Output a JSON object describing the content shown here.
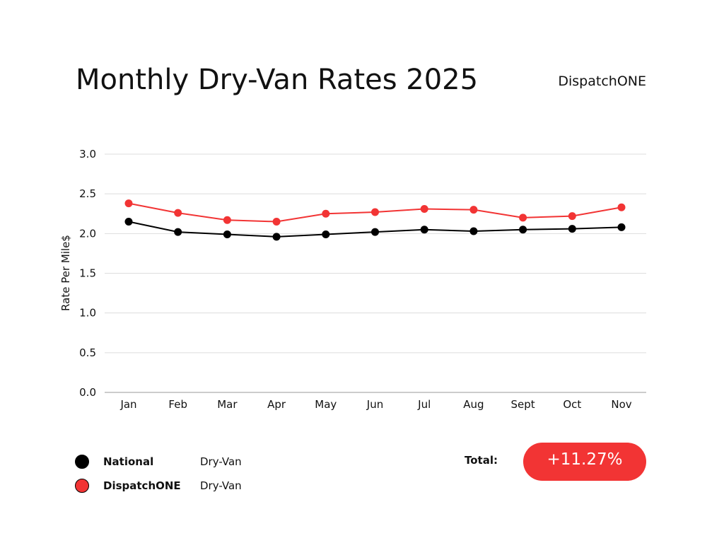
{
  "header": {
    "title": "Monthly Dry-Van Rates 2025",
    "brand": "DispatchONE"
  },
  "chart_data": {
    "type": "line",
    "title": "Monthly Dry-Van Rates 2025",
    "xlabel": "",
    "ylabel": "Rate Per Mile$",
    "ylim": [
      0,
      3
    ],
    "yticks": [
      "0.0",
      "0.5",
      "1.0",
      "1.5",
      "2.0",
      "2.5",
      "3.0"
    ],
    "categories": [
      "Jan",
      "Feb",
      "Mar",
      "Apr",
      "May",
      "Jun",
      "Jul",
      "Aug",
      "Sept",
      "Oct",
      "Nov"
    ],
    "grid": true,
    "series": [
      {
        "name": "National",
        "color": "#000000",
        "values": [
          2.15,
          2.02,
          1.99,
          1.96,
          1.99,
          2.02,
          2.05,
          2.03,
          2.05,
          2.06,
          2.08
        ]
      },
      {
        "name": "DispatchONE",
        "color": "#f23434",
        "values": [
          2.38,
          2.26,
          2.17,
          2.15,
          2.25,
          2.27,
          2.31,
          2.3,
          2.2,
          2.22,
          2.33
        ]
      }
    ]
  },
  "legend": [
    {
      "name": "National",
      "type": "Dry-Van",
      "color": "#000000"
    },
    {
      "name": "DispatchONE",
      "type": "Dry-Van",
      "color": "#f23434"
    }
  ],
  "total": {
    "label": "Total:",
    "value": "+11.27%",
    "color": "#f23434"
  }
}
